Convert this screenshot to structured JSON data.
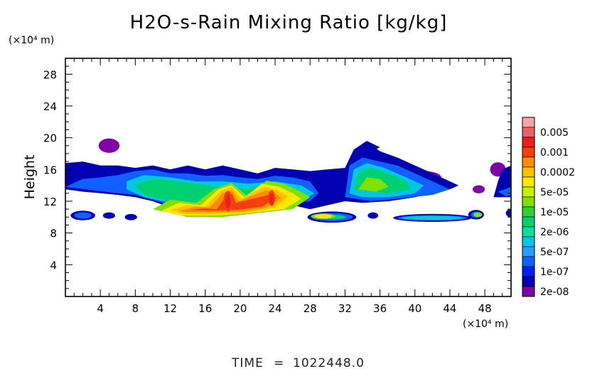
{
  "chart_data": {
    "type": "heatmap",
    "title": "H2O-s-Rain Mixing Ratio [kg/kg]",
    "ylabel": "Height",
    "y_unit": "(×10⁴ m)",
    "x_unit": "(×10⁴ m)",
    "xlim": [
      0,
      51
    ],
    "ylim": [
      0,
      30
    ],
    "x_ticks": [
      4,
      8,
      12,
      16,
      20,
      24,
      28,
      32,
      36,
      40,
      44,
      48
    ],
    "y_ticks": [
      4,
      8,
      12,
      16,
      20,
      24,
      28
    ],
    "legend_position": "right",
    "legend": {
      "levels": [
        {
          "label": "",
          "color": "#f5a5a5"
        },
        {
          "label": "0.005",
          "color": "#f06060"
        },
        {
          "label": "",
          "color": "#e82020"
        },
        {
          "label": "0.001",
          "color": "#f04010"
        },
        {
          "label": "",
          "color": "#ff8c00"
        },
        {
          "label": "0.0002",
          "color": "#ffc000"
        },
        {
          "label": "",
          "color": "#ffe800"
        },
        {
          "label": "5e-05",
          "color": "#c8f000"
        },
        {
          "label": "",
          "color": "#80e000"
        },
        {
          "label": "1e-05",
          "color": "#30d030"
        },
        {
          "label": "",
          "color": "#00d070"
        },
        {
          "label": "2e-06",
          "color": "#00e0a0"
        },
        {
          "label": "",
          "color": "#00c8e0"
        },
        {
          "label": "5e-07",
          "color": "#20a0ff"
        },
        {
          "label": "",
          "color": "#1060ff"
        },
        {
          "label": "1e-07",
          "color": "#0020f0"
        },
        {
          "label": "",
          "color": "#0000b0"
        },
        {
          "label": "2e-08",
          "color": "#8000a8"
        }
      ]
    },
    "regions": [
      {
        "level": 17,
        "shape": "ellipse",
        "cx": 5.0,
        "cy": 19.0,
        "rx": 1.2,
        "ry": 0.9
      },
      {
        "level": 17,
        "shape": "ellipse",
        "cx": 52.0,
        "cy": 14.5,
        "rx": 1.0,
        "ry": 1.5
      },
      {
        "level": 17,
        "shape": "ellipse",
        "cx": 47.3,
        "cy": 13.5,
        "rx": 0.7,
        "ry": 0.5
      },
      {
        "level": 17,
        "shape": "ellipse",
        "cx": 41.0,
        "cy": 15.0,
        "rx": 2.0,
        "ry": 0.8
      },
      {
        "level": 17,
        "shape": "ellipse",
        "cx": 49.5,
        "cy": 16.0,
        "rx": 0.9,
        "ry": 0.9
      },
      {
        "level": 16,
        "shape": "poly",
        "points": [
          [
            0,
            13.5
          ],
          [
            0,
            16.8
          ],
          [
            2,
            17.0
          ],
          [
            4,
            16.5
          ],
          [
            6,
            16.5
          ],
          [
            8,
            16.2
          ],
          [
            10,
            16.5
          ],
          [
            12,
            16.0
          ],
          [
            14,
            16.5
          ],
          [
            16,
            16.0
          ],
          [
            18,
            16.5
          ],
          [
            20,
            16.0
          ],
          [
            22,
            15.5
          ],
          [
            24,
            16.2
          ],
          [
            26,
            16.0
          ],
          [
            28,
            15.8
          ],
          [
            30,
            16.0
          ],
          [
            32,
            16.2
          ],
          [
            33,
            18.5
          ],
          [
            34.5,
            19.5
          ],
          [
            36,
            18.3
          ],
          [
            38,
            17.5
          ],
          [
            40,
            16.5
          ],
          [
            42,
            15.5
          ],
          [
            44,
            14.5
          ],
          [
            45,
            14.0
          ],
          [
            44,
            13.5
          ],
          [
            42,
            13.0
          ],
          [
            40,
            12.5
          ],
          [
            37,
            12.0
          ],
          [
            34,
            11.8
          ],
          [
            32,
            12.0
          ],
          [
            30,
            11.5
          ],
          [
            28,
            11.0
          ],
          [
            26,
            11.5
          ],
          [
            24,
            11.0
          ],
          [
            22,
            11.5
          ],
          [
            20,
            11.0
          ],
          [
            18,
            11.3
          ],
          [
            16,
            11.0
          ],
          [
            14,
            11.5
          ],
          [
            12,
            11.2
          ],
          [
            10,
            12.0
          ],
          [
            8,
            12.5
          ],
          [
            6,
            12.8
          ],
          [
            4,
            13.0
          ],
          [
            2,
            13.2
          ]
        ]
      },
      {
        "level": 16,
        "shape": "poly",
        "points": [
          [
            49,
            12.5
          ],
          [
            51,
            12.5
          ],
          [
            51,
            16.5
          ],
          [
            50,
            16.0
          ],
          [
            49.5,
            14.5
          ]
        ]
      },
      {
        "level": 16,
        "shape": "poly",
        "points": [
          [
            33,
            18.5
          ],
          [
            34.5,
            19.6
          ],
          [
            36,
            18.8
          ],
          [
            34.5,
            18.0
          ]
        ]
      },
      {
        "level": 16,
        "shape": "ellipse",
        "cx": 2.0,
        "cy": 10.2,
        "rx": 1.4,
        "ry": 0.6
      },
      {
        "level": 16,
        "shape": "ellipse",
        "cx": 5.0,
        "cy": 10.2,
        "rx": 0.7,
        "ry": 0.4
      },
      {
        "level": 16,
        "shape": "ellipse",
        "cx": 7.5,
        "cy": 10.0,
        "rx": 0.7,
        "ry": 0.4
      },
      {
        "level": 16,
        "shape": "ellipse",
        "cx": 30.5,
        "cy": 10.0,
        "rx": 2.8,
        "ry": 0.7
      },
      {
        "level": 16,
        "shape": "ellipse",
        "cx": 35.2,
        "cy": 10.2,
        "rx": 0.6,
        "ry": 0.4
      },
      {
        "level": 16,
        "shape": "ellipse",
        "cx": 42.0,
        "cy": 9.9,
        "rx": 4.5,
        "ry": 0.5
      },
      {
        "level": 16,
        "shape": "ellipse",
        "cx": 47.0,
        "cy": 10.3,
        "rx": 0.9,
        "ry": 0.6
      },
      {
        "level": 16,
        "shape": "ellipse",
        "cx": 51.0,
        "cy": 10.5,
        "rx": 0.6,
        "ry": 0.5
      },
      {
        "level": 14,
        "shape": "poly",
        "points": [
          [
            0,
            13.8
          ],
          [
            2,
            14.8
          ],
          [
            4,
            15.0
          ],
          [
            6,
            15.3
          ],
          [
            8,
            15.8
          ],
          [
            10,
            16.0
          ],
          [
            12,
            15.5
          ],
          [
            14,
            15.5
          ],
          [
            16,
            15.2
          ],
          [
            18,
            15.3
          ],
          [
            20,
            15.0
          ],
          [
            22,
            14.8
          ],
          [
            24,
            15.2
          ],
          [
            26,
            15.0
          ],
          [
            28,
            14.5
          ],
          [
            29,
            13.0
          ],
          [
            28,
            12.0
          ],
          [
            26,
            11.8
          ],
          [
            24,
            11.5
          ],
          [
            22,
            11.8
          ],
          [
            20,
            11.2
          ],
          [
            18,
            11.6
          ],
          [
            16,
            11.3
          ],
          [
            14,
            11.8
          ],
          [
            12,
            11.5
          ],
          [
            10,
            12.2
          ],
          [
            8,
            12.8
          ],
          [
            6,
            13.0
          ],
          [
            3,
            13.4
          ]
        ]
      },
      {
        "level": 14,
        "shape": "poly",
        "points": [
          [
            32,
            12.5
          ],
          [
            32.5,
            16.5
          ],
          [
            34,
            17.5
          ],
          [
            36,
            17.0
          ],
          [
            38,
            16.5
          ],
          [
            40,
            15.5
          ],
          [
            42,
            14.5
          ],
          [
            44,
            13.5
          ],
          [
            42,
            12.8
          ],
          [
            38,
            12.3
          ],
          [
            35,
            12.0
          ]
        ]
      },
      {
        "level": 14,
        "shape": "poly",
        "points": [
          [
            51,
            13.8
          ],
          [
            49.5,
            13.2
          ],
          [
            50.5,
            12.6
          ],
          [
            51,
            12.8
          ]
        ]
      },
      {
        "level": 14,
        "shape": "ellipse",
        "cx": 2.0,
        "cy": 10.2,
        "rx": 1.0,
        "ry": 0.4
      },
      {
        "level": 14,
        "shape": "ellipse",
        "cx": 30.5,
        "cy": 10.0,
        "rx": 2.4,
        "ry": 0.5
      },
      {
        "level": 14,
        "shape": "ellipse",
        "cx": 42.0,
        "cy": 9.9,
        "rx": 4.0,
        "ry": 0.35
      },
      {
        "level": 14,
        "shape": "ellipse",
        "cx": 47.0,
        "cy": 10.3,
        "rx": 0.6,
        "ry": 0.4
      },
      {
        "level": 12,
        "shape": "poly",
        "points": [
          [
            7,
            14.5
          ],
          [
            9,
            15.3
          ],
          [
            12,
            15.0
          ],
          [
            15,
            14.5
          ],
          [
            18,
            14.5
          ],
          [
            21,
            14.2
          ],
          [
            24,
            14.5
          ],
          [
            27,
            14.0
          ],
          [
            28.5,
            13.0
          ],
          [
            27,
            12.0
          ],
          [
            24,
            11.8
          ],
          [
            20,
            11.5
          ],
          [
            16,
            11.5
          ],
          [
            12,
            11.8
          ],
          [
            9,
            12.5
          ],
          [
            7,
            13.5
          ]
        ]
      },
      {
        "level": 12,
        "shape": "poly",
        "points": [
          [
            32.5,
            13.0
          ],
          [
            33,
            16.0
          ],
          [
            34.5,
            16.8
          ],
          [
            36.5,
            16.2
          ],
          [
            39,
            15.0
          ],
          [
            41,
            14.0
          ],
          [
            40,
            13.0
          ],
          [
            37,
            12.5
          ],
          [
            34,
            12.5
          ]
        ]
      },
      {
        "level": 12,
        "shape": "ellipse",
        "cx": 42.0,
        "cy": 9.9,
        "rx": 3.5,
        "ry": 0.25
      },
      {
        "level": 10,
        "shape": "poly",
        "points": [
          [
            8,
            14.0
          ],
          [
            10,
            14.8
          ],
          [
            13,
            14.5
          ],
          [
            16,
            14.0
          ],
          [
            19,
            13.5
          ],
          [
            22,
            13.8
          ],
          [
            25,
            13.8
          ],
          [
            27,
            13.2
          ],
          [
            27,
            12.2
          ],
          [
            24,
            12.0
          ],
          [
            20,
            11.8
          ],
          [
            16,
            11.8
          ],
          [
            12,
            12.0
          ],
          [
            9,
            12.8
          ]
        ]
      },
      {
        "level": 10,
        "shape": "poly",
        "points": [
          [
            33,
            13.5
          ],
          [
            33.5,
            15.5
          ],
          [
            35,
            16.2
          ],
          [
            37,
            15.5
          ],
          [
            39,
            14.5
          ],
          [
            39.5,
            13.5
          ],
          [
            37,
            13.0
          ]
        ]
      },
      {
        "level": 10,
        "shape": "ellipse",
        "cx": 30.5,
        "cy": 10.0,
        "rx": 1.6,
        "ry": 0.3
      },
      {
        "level": 8,
        "shape": "poly",
        "points": [
          [
            10,
            11.0
          ],
          [
            12,
            12.2
          ],
          [
            15,
            11.8
          ],
          [
            17,
            13.5
          ],
          [
            19,
            14.3
          ],
          [
            21,
            12.5
          ],
          [
            23,
            14.6
          ],
          [
            25,
            14.2
          ],
          [
            27,
            13.2
          ],
          [
            28,
            12.5
          ],
          [
            26,
            11.0
          ],
          [
            22,
            10.5
          ],
          [
            18,
            10.0
          ],
          [
            14,
            10.0
          ]
        ]
      },
      {
        "level": 8,
        "shape": "poly",
        "points": [
          [
            33.5,
            13.5
          ],
          [
            34.5,
            15.0
          ],
          [
            36,
            14.8
          ],
          [
            37,
            13.8
          ],
          [
            35.5,
            13.2
          ]
        ]
      },
      {
        "level": 8,
        "shape": "ellipse",
        "cx": 29.5,
        "cy": 10.1,
        "rx": 1.4,
        "ry": 0.35
      },
      {
        "level": 8,
        "shape": "ellipse",
        "cx": 47.2,
        "cy": 10.3,
        "rx": 0.5,
        "ry": 0.3
      },
      {
        "level": 6,
        "shape": "poly",
        "points": [
          [
            11,
            10.8
          ],
          [
            13,
            11.8
          ],
          [
            15.5,
            11.5
          ],
          [
            17.5,
            13.5
          ],
          [
            19,
            14.0
          ],
          [
            20.5,
            12.5
          ],
          [
            22.5,
            14.2
          ],
          [
            24.5,
            13.8
          ],
          [
            26,
            13.0
          ],
          [
            27,
            12.3
          ],
          [
            25,
            11.0
          ],
          [
            21,
            10.5
          ],
          [
            17,
            10.2
          ],
          [
            13,
            10.2
          ]
        ]
      },
      {
        "level": 6,
        "shape": "ellipse",
        "cx": 29.5,
        "cy": 10.1,
        "rx": 1.0,
        "ry": 0.25
      },
      {
        "level": 5,
        "shape": "poly",
        "points": [
          [
            12,
            10.9
          ],
          [
            14,
            11.5
          ],
          [
            16,
            11.3
          ],
          [
            17.8,
            13.3
          ],
          [
            19,
            13.8
          ],
          [
            20.2,
            12.3
          ],
          [
            22.8,
            13.8
          ],
          [
            24.3,
            13.4
          ],
          [
            25.5,
            12.6
          ],
          [
            24,
            11.2
          ],
          [
            21,
            10.6
          ],
          [
            17,
            10.4
          ],
          [
            13.5,
            10.4
          ]
        ]
      },
      {
        "level": 4,
        "shape": "poly",
        "points": [
          [
            13,
            10.8
          ],
          [
            15,
            11.3
          ],
          [
            16.5,
            11.2
          ],
          [
            18,
            13.0
          ],
          [
            19,
            13.4
          ],
          [
            19.8,
            12.0
          ],
          [
            23.0,
            13.4
          ],
          [
            24.0,
            13.0
          ],
          [
            24.8,
            12.4
          ],
          [
            23,
            11.2
          ],
          [
            20,
            10.7
          ],
          [
            16.5,
            10.6
          ],
          [
            14,
            10.6
          ]
        ]
      },
      {
        "level": 3,
        "shape": "poly",
        "points": [
          [
            14,
            10.9
          ],
          [
            16,
            11.1
          ],
          [
            17.3,
            11.0
          ],
          [
            18.3,
            12.5
          ],
          [
            19.1,
            12.9
          ],
          [
            19.5,
            11.8
          ],
          [
            23.3,
            12.8
          ],
          [
            24.2,
            12.4
          ],
          [
            22.5,
            11.3
          ],
          [
            19.5,
            10.9
          ],
          [
            16.5,
            10.8
          ]
        ]
      },
      {
        "level": 3,
        "shape": "ellipse",
        "cx": 18.6,
        "cy": 12.0,
        "rx": 0.5,
        "ry": 1.3
      },
      {
        "level": 3,
        "shape": "ellipse",
        "cx": 23.6,
        "cy": 12.4,
        "rx": 0.4,
        "ry": 1.0
      },
      {
        "level": 2,
        "shape": "ellipse",
        "cx": 18.6,
        "cy": 12.0,
        "rx": 0.3,
        "ry": 0.9
      },
      {
        "level": 2,
        "shape": "ellipse",
        "cx": 23.6,
        "cy": 12.3,
        "rx": 0.25,
        "ry": 0.7
      }
    ]
  },
  "footer": {
    "time_label": "TIME",
    "time_eq": "=",
    "time_value": "1022448.0"
  }
}
